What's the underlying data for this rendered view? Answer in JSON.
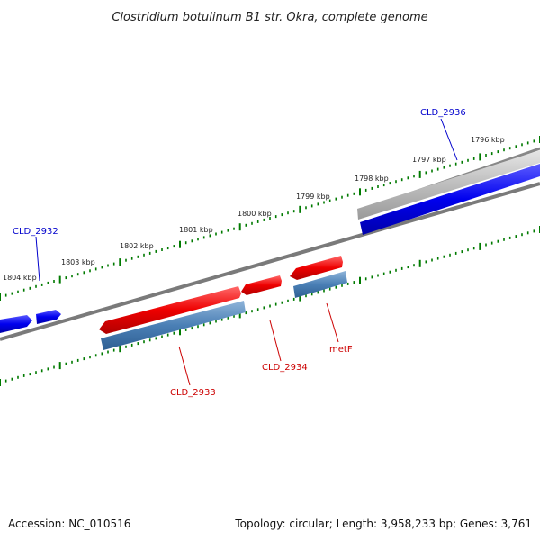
{
  "title": "Clostridium botulinum B1 str. Okra, complete genome",
  "footer": {
    "accession": "Accession: NC_010516",
    "summary": "Topology: circular; Length: 3,958,233 bp; Genes: 3,761"
  },
  "tick_labels": [
    "1796 kbp",
    "1797 kbp",
    "1798 kbp",
    "1799 kbp",
    "1800 kbp",
    "1801 kbp",
    "1802 kbp",
    "1803 kbp",
    "1804 kbp"
  ],
  "gene_labels": {
    "cld_2936": "CLD_2936",
    "cld_2932": "CLD_2932",
    "cld_2933": "CLD_2933",
    "cld_2934": "CLD_2934",
    "metf": "metF"
  },
  "colors": {
    "forward_strand": "#0000ee",
    "reverse_strand": "#ee0000",
    "cds": "#4a7fb5",
    "backbone": "#888888",
    "tick": "#007a00"
  }
}
